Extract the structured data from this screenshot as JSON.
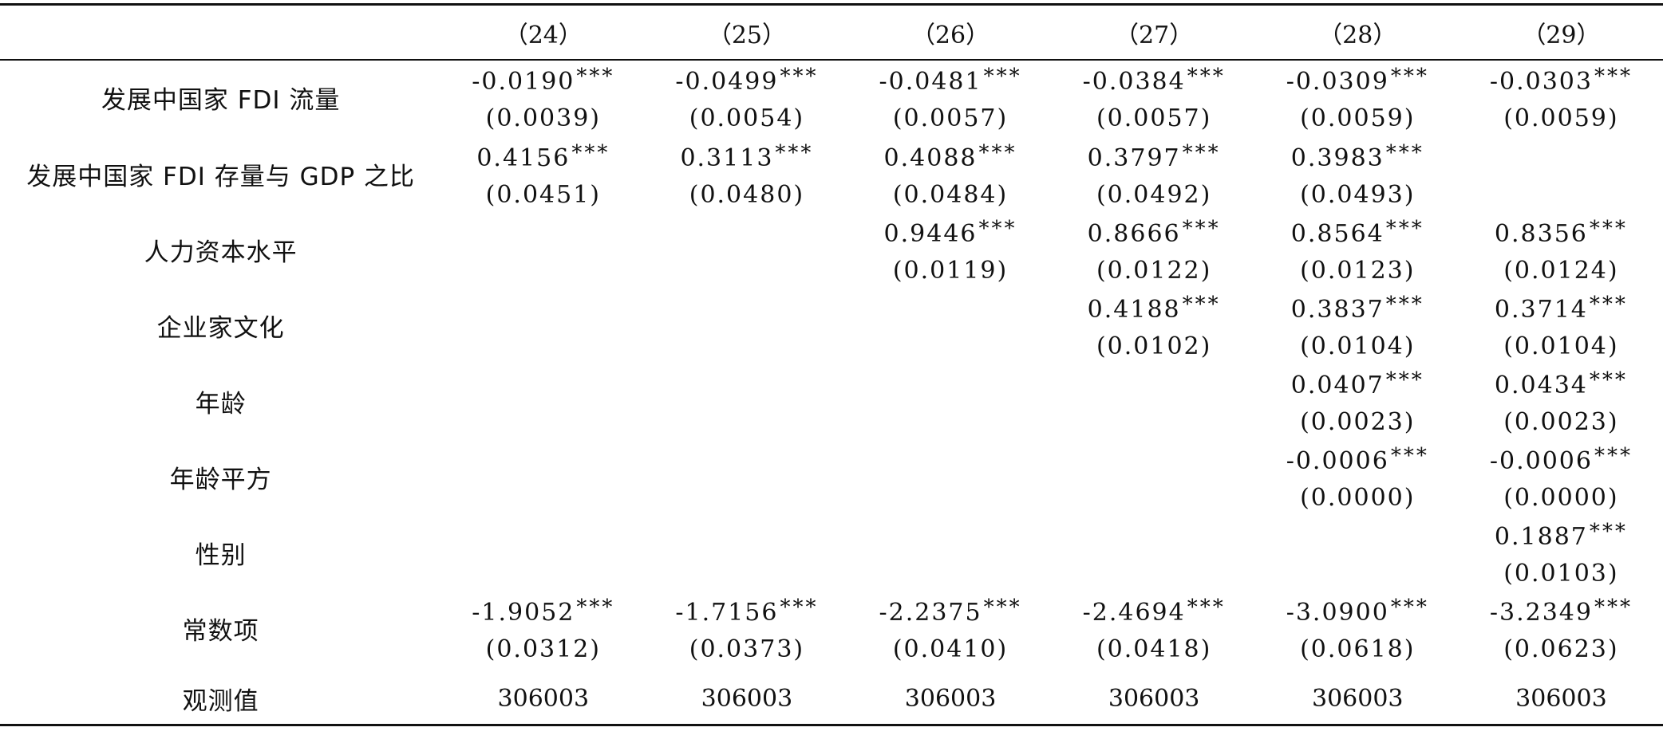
{
  "columns": [
    "（24）",
    "（25）",
    "（26）",
    "（27）",
    "（28）",
    "（29）"
  ],
  "rows": [
    {
      "label": "发展中国家 FDI 流量",
      "cells": [
        {
          "coef": "-0.0190",
          "stars": "***",
          "se": "(0.0039)"
        },
        {
          "coef": "-0.0499",
          "stars": "***",
          "se": "(0.0054)"
        },
        {
          "coef": "-0.0481",
          "stars": "***",
          "se": "(0.0057)"
        },
        {
          "coef": "-0.0384",
          "stars": "***",
          "se": "(0.0057)"
        },
        {
          "coef": "-0.0309",
          "stars": "***",
          "se": "(0.0059)"
        },
        {
          "coef": "-0.0303",
          "stars": "***",
          "se": "(0.0059)"
        }
      ]
    },
    {
      "label": "发展中国家 FDI 存量与 GDP 之比",
      "cells": [
        {
          "coef": "0.4156",
          "stars": "***",
          "se": "(0.0451)"
        },
        {
          "coef": "0.3113",
          "stars": "***",
          "se": "(0.0480)"
        },
        {
          "coef": "0.4088",
          "stars": "***",
          "se": "(0.0484)"
        },
        {
          "coef": "0.3797",
          "stars": "***",
          "se": "(0.0492)"
        },
        {
          "coef": "0.3983",
          "stars": "***",
          "se": "(0.0493)"
        },
        {
          "coef": "",
          "stars": "",
          "se": ""
        }
      ]
    },
    {
      "label": "人力资本水平",
      "cells": [
        {
          "coef": "",
          "stars": "",
          "se": ""
        },
        {
          "coef": "",
          "stars": "",
          "se": ""
        },
        {
          "coef": "0.9446",
          "stars": "***",
          "se": "(0.0119)"
        },
        {
          "coef": "0.8666",
          "stars": "***",
          "se": "(0.0122)"
        },
        {
          "coef": "0.8564",
          "stars": "***",
          "se": "(0.0123)"
        },
        {
          "coef": "0.8356",
          "stars": "***",
          "se": "(0.0124)"
        }
      ]
    },
    {
      "label": "企业家文化",
      "cells": [
        {
          "coef": "",
          "stars": "",
          "se": ""
        },
        {
          "coef": "",
          "stars": "",
          "se": ""
        },
        {
          "coef": "",
          "stars": "",
          "se": ""
        },
        {
          "coef": "0.4188",
          "stars": "***",
          "se": "(0.0102)"
        },
        {
          "coef": "0.3837",
          "stars": "***",
          "se": "(0.0104)"
        },
        {
          "coef": "0.3714",
          "stars": "***",
          "se": "(0.0104)"
        }
      ]
    },
    {
      "label": "年龄",
      "cells": [
        {
          "coef": "",
          "stars": "",
          "se": ""
        },
        {
          "coef": "",
          "stars": "",
          "se": ""
        },
        {
          "coef": "",
          "stars": "",
          "se": ""
        },
        {
          "coef": "",
          "stars": "",
          "se": ""
        },
        {
          "coef": "0.0407",
          "stars": "***",
          "se": "(0.0023)"
        },
        {
          "coef": "0.0434",
          "stars": "***",
          "se": "(0.0023)"
        }
      ]
    },
    {
      "label": "年龄平方",
      "cells": [
        {
          "coef": "",
          "stars": "",
          "se": ""
        },
        {
          "coef": "",
          "stars": "",
          "se": ""
        },
        {
          "coef": "",
          "stars": "",
          "se": ""
        },
        {
          "coef": "",
          "stars": "",
          "se": ""
        },
        {
          "coef": "-0.0006",
          "stars": "***",
          "se": "(0.0000)"
        },
        {
          "coef": "-0.0006",
          "stars": "***",
          "se": "(0.0000)"
        }
      ]
    },
    {
      "label": "性别",
      "cells": [
        {
          "coef": "",
          "stars": "",
          "se": ""
        },
        {
          "coef": "",
          "stars": "",
          "se": ""
        },
        {
          "coef": "",
          "stars": "",
          "se": ""
        },
        {
          "coef": "",
          "stars": "",
          "se": ""
        },
        {
          "coef": "",
          "stars": "",
          "se": ""
        },
        {
          "coef": "0.1887",
          "stars": "***",
          "se": "(0.0103)"
        }
      ]
    },
    {
      "label": "常数项",
      "cells": [
        {
          "coef": "-1.9052",
          "stars": "***",
          "se": "(0.0312)"
        },
        {
          "coef": "-1.7156",
          "stars": "***",
          "se": "(0.0373)"
        },
        {
          "coef": "-2.2375",
          "stars": "***",
          "se": "(0.0410)"
        },
        {
          "coef": "-2.4694",
          "stars": "***",
          "se": "(0.0418)"
        },
        {
          "coef": "-3.0900",
          "stars": "***",
          "se": "(0.0618)"
        },
        {
          "coef": "-3.2349",
          "stars": "***",
          "se": "(0.0623)"
        }
      ]
    }
  ],
  "observations": {
    "label": "观测值",
    "values": [
      "306003",
      "306003",
      "306003",
      "306003",
      "306003",
      "306003"
    ]
  }
}
